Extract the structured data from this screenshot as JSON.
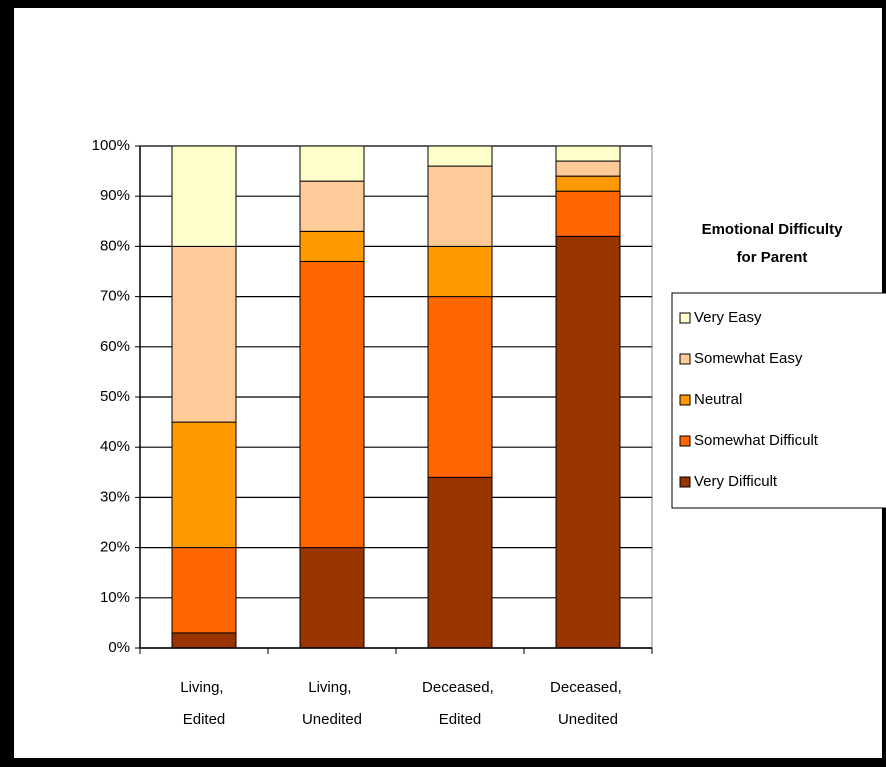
{
  "chart_data": {
    "type": "stacked_bar",
    "categories": [
      "Living, Edited",
      "Living, Unedited",
      "Deceased, Edited",
      "Deceased, Unedited"
    ],
    "series": [
      {
        "name": "Very Difficult",
        "color": "#993300",
        "values": [
          3,
          20,
          34,
          82
        ]
      },
      {
        "name": "Somewhat Difficult",
        "color": "#ff6600",
        "values": [
          17,
          57,
          36,
          9
        ]
      },
      {
        "name": "Neutral",
        "color": "#ff9900",
        "values": [
          25,
          6,
          10,
          3
        ]
      },
      {
        "name": "Somewhat Easy",
        "color": "#ffcc99",
        "values": [
          35,
          10,
          16,
          3
        ]
      },
      {
        "name": "Very Easy",
        "color": "#ffffcc",
        "values": [
          20,
          7,
          4,
          3
        ]
      }
    ],
    "legend_title": [
      "Emotional Difficulty",
      "for Parent"
    ],
    "ylim": [
      0,
      100
    ],
    "yticks": [
      {
        "value": 0,
        "label": "0%"
      },
      {
        "value": 10,
        "label": "10%"
      },
      {
        "value": 20,
        "label": "20%"
      },
      {
        "value": 30,
        "label": "30%"
      },
      {
        "value": 40,
        "label": "40%"
      },
      {
        "value": 50,
        "label": "50%"
      },
      {
        "value": 60,
        "label": "60%"
      },
      {
        "value": 70,
        "label": "70%"
      },
      {
        "value": 80,
        "label": "80%"
      },
      {
        "value": 90,
        "label": "90%"
      },
      {
        "value": 100,
        "label": "100%"
      }
    ],
    "grid": true
  }
}
